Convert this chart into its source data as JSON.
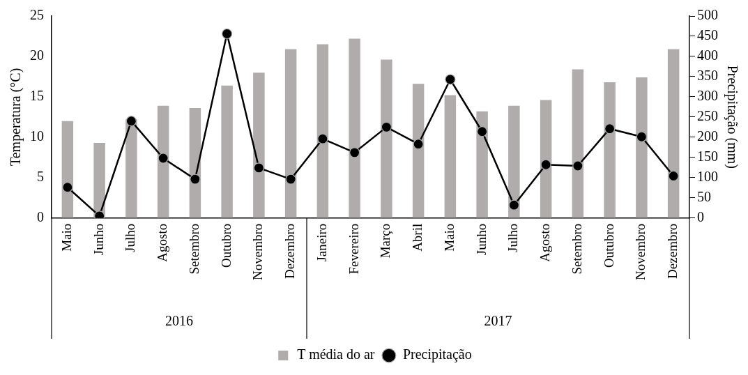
{
  "chart_data": {
    "type": "bar",
    "categories": [
      "Maio",
      "Junho",
      "Julho",
      "Agosto",
      "Setembro",
      "Outubro",
      "Novembro",
      "Dezembro",
      "Janeiro",
      "Fevereiro",
      "Março",
      "Abril",
      "Maio",
      "Junho",
      "Julho",
      "Agosto",
      "Setembro",
      "Outubro",
      "Novembro",
      "Dezembro"
    ],
    "series": [
      {
        "name": "T média do ar",
        "color": "#b0acab",
        "values": [
          12.0,
          9.3,
          12.2,
          13.9,
          13.6,
          16.4,
          18.0,
          20.9,
          21.5,
          22.2,
          19.6,
          16.6,
          15.2,
          13.2,
          13.9,
          14.6,
          18.4,
          16.8,
          17.4,
          20.9
        ]
      },
      {
        "name": "Precipitação",
        "type": "line",
        "axis": "y2",
        "color": "#000000",
        "marker": "circle",
        "values": [
          76,
          5,
          240,
          148,
          96,
          456,
          124,
          96,
          196,
          162,
          225,
          183,
          343,
          214,
          32,
          132,
          129,
          221,
          201,
          104
        ]
      }
    ],
    "ylabel": "Temperatura (°C)",
    "y2label": "Precipitação (mm)",
    "ylim": [
      0,
      25
    ],
    "yticks": [
      0,
      5,
      10,
      15,
      20,
      25
    ],
    "y2lim": [
      0,
      500
    ],
    "y2ticks": [
      0,
      50,
      100,
      150,
      200,
      250,
      300,
      350,
      400,
      450,
      500
    ],
    "annotations": [
      "2016",
      "2017"
    ],
    "grid": false,
    "legend": "bottom"
  }
}
